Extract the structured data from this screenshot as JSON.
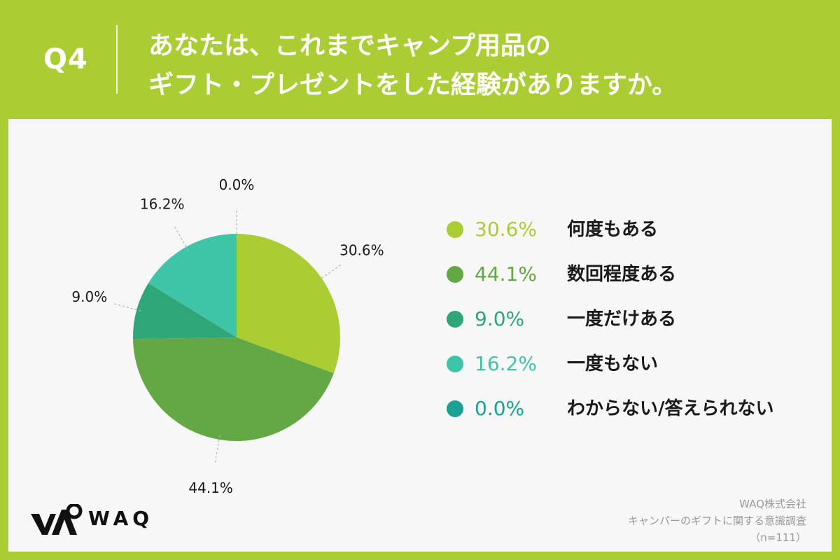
{
  "header": {
    "q_label": "Q4",
    "question_line1": "あなたは、これまでキャンプ用品の",
    "question_line2": "ギフト・プレゼントをした経験がありますか。"
  },
  "chart_data": {
    "type": "pie",
    "title": "あなたは、これまでキャンプ用品のギフト・プレゼントをした経験がありますか。",
    "categories": [
      "何度もある",
      "数回程度ある",
      "一度だけある",
      "一度もない",
      "わからない/答えられない"
    ],
    "values": [
      30.6,
      44.1,
      9.0,
      16.2,
      0.0
    ],
    "labels": [
      "30.6%",
      "44.1%",
      "9.0%",
      "16.2%",
      "0.0%"
    ],
    "colors": [
      "#a9cd32",
      "#63a844",
      "#2ea677",
      "#3fc4a8",
      "#1aa193"
    ],
    "legend_position": "right"
  },
  "footer": {
    "logo_text": "WAQ",
    "source_line1": "WAQ株式会社",
    "source_line2": "キャンパーのギフトに関する意識調査",
    "source_line3": "（n=111）"
  }
}
